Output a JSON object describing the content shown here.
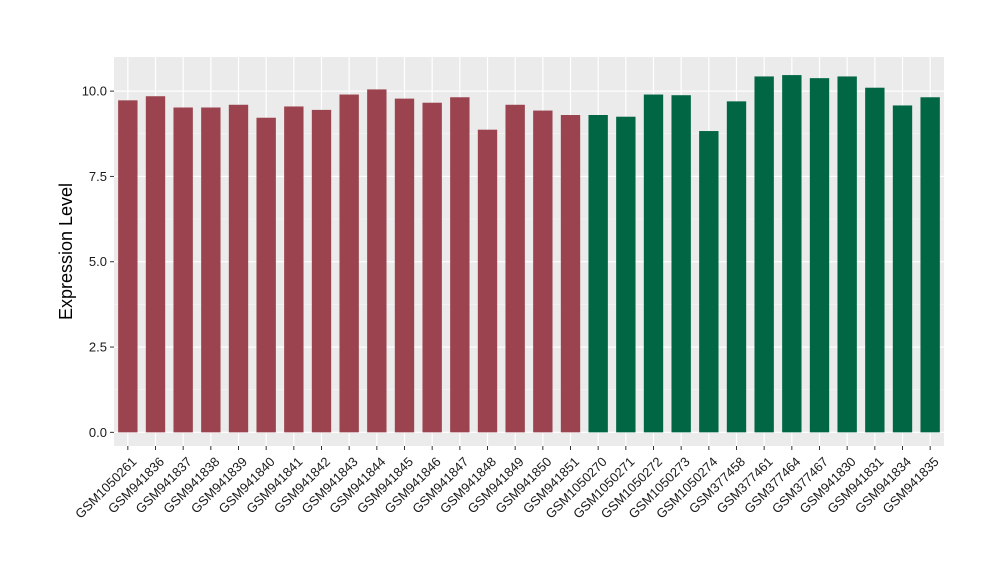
{
  "chart_data": {
    "type": "bar",
    "title": "",
    "xlabel": "",
    "ylabel": "Expression Level",
    "ylim": [
      -0.4,
      11.0
    ],
    "yticks": [
      0.0,
      2.5,
      5.0,
      7.5,
      10.0
    ],
    "ytick_labels": [
      "0.0",
      "2.5",
      "5.0",
      "7.5",
      "10.0"
    ],
    "grid": true,
    "legend": "none",
    "categories": [
      "GSM1050261",
      "GSM941836",
      "GSM941837",
      "GSM941838",
      "GSM941839",
      "GSM941840",
      "GSM941841",
      "GSM941842",
      "GSM941843",
      "GSM941844",
      "GSM941845",
      "GSM941846",
      "GSM941847",
      "GSM941848",
      "GSM941849",
      "GSM941850",
      "GSM941851",
      "GSM1050270",
      "GSM1050271",
      "GSM1050272",
      "GSM1050273",
      "GSM1050274",
      "GSM377458",
      "GSM377461",
      "GSM377464",
      "GSM377467",
      "GSM941830",
      "GSM941831",
      "GSM941834",
      "GSM941835"
    ],
    "values": [
      9.73,
      9.85,
      9.52,
      9.52,
      9.6,
      9.22,
      9.55,
      9.45,
      9.9,
      10.05,
      9.78,
      9.66,
      9.82,
      8.87,
      9.6,
      9.43,
      9.3,
      9.3,
      9.25,
      9.9,
      9.88,
      8.83,
      9.7,
      10.43,
      10.47,
      10.38,
      10.43,
      10.1,
      9.58,
      9.82
    ],
    "group_sizes": [
      17,
      13
    ],
    "colors": {
      "group_a": "#9b434f",
      "group_b": "#006644",
      "panel_bg": "#ebebeb",
      "grid_major": "#ffffff",
      "grid_minor": "#f5f5f5"
    }
  }
}
